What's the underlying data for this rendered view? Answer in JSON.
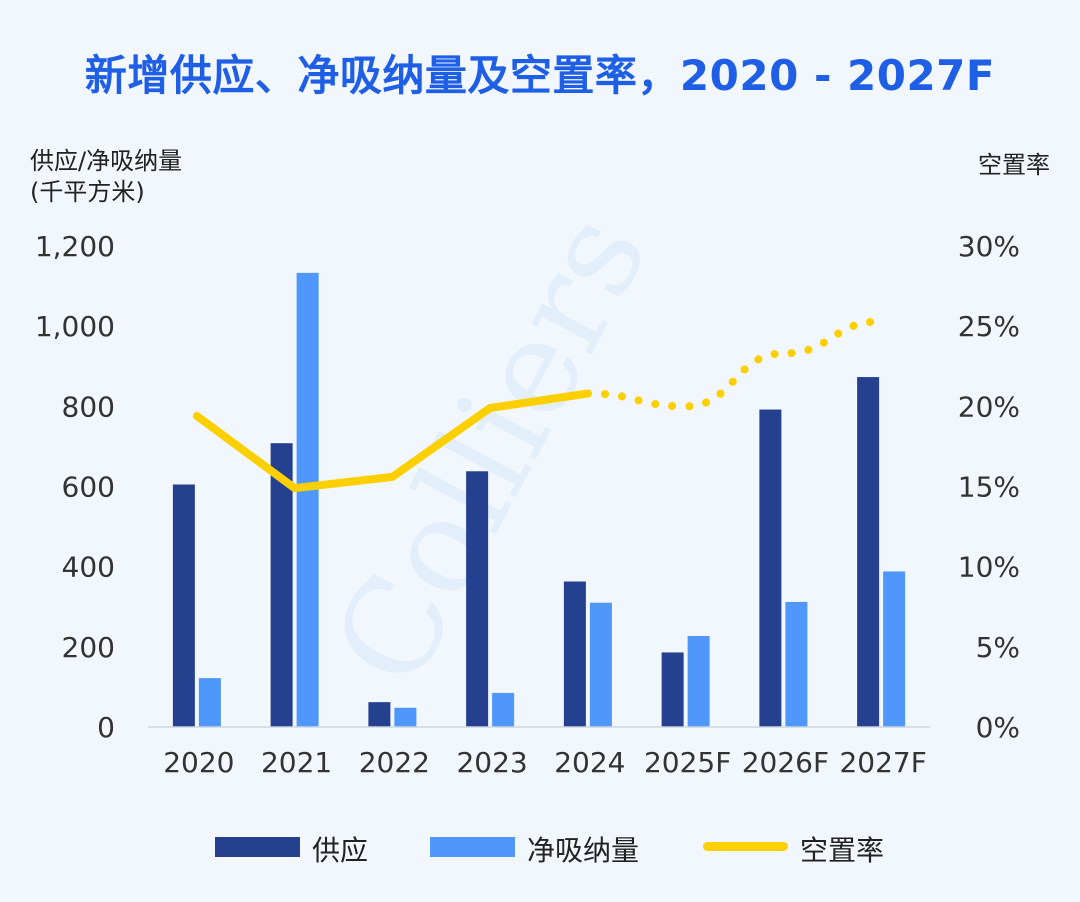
{
  "title": "新增供应、净吸纳量及空置率，2020 - 2027F",
  "axis": {
    "left_title": "供应/净吸纳量",
    "left_unit": "(千平方米)",
    "right_title": "空置率"
  },
  "watermark": "Colliers",
  "colors": {
    "title": "#1f5fe6",
    "supply": "#25408f",
    "net_absorption": "#4f97fa",
    "vacancy": "#fcd000",
    "background": "#f1f7fd"
  },
  "chart_data": {
    "type": "bar",
    "categories": [
      "2020",
      "2021",
      "2022",
      "2023",
      "2024",
      "2025F",
      "2026F",
      "2027F"
    ],
    "series": [
      {
        "name": "供应",
        "type": "bar",
        "axis": "left",
        "values": [
          605,
          708,
          62,
          638,
          363,
          186,
          792,
          873
        ]
      },
      {
        "name": "净吸纳量",
        "type": "bar",
        "axis": "left",
        "values": [
          122,
          1133,
          48,
          85,
          310,
          227,
          312,
          388
        ]
      },
      {
        "name": "空置率",
        "type": "line",
        "axis": "right",
        "values": [
          19.4,
          14.9,
          15.6,
          19.9,
          20.8,
          20.0,
          23.3,
          25.3
        ],
        "style": "solid until 2024, dotted for forecast years"
      }
    ],
    "ylim_left": [
      0,
      1200
    ],
    "yticks_left": [
      "0",
      "200",
      "400",
      "600",
      "800",
      "1,000",
      "1,200"
    ],
    "ylim_right": [
      0,
      30
    ],
    "yticks_right": [
      "0%",
      "5%",
      "10%",
      "15%",
      "20%",
      "25%",
      "30%"
    ],
    "grid": false,
    "legend_position": "bottom"
  }
}
